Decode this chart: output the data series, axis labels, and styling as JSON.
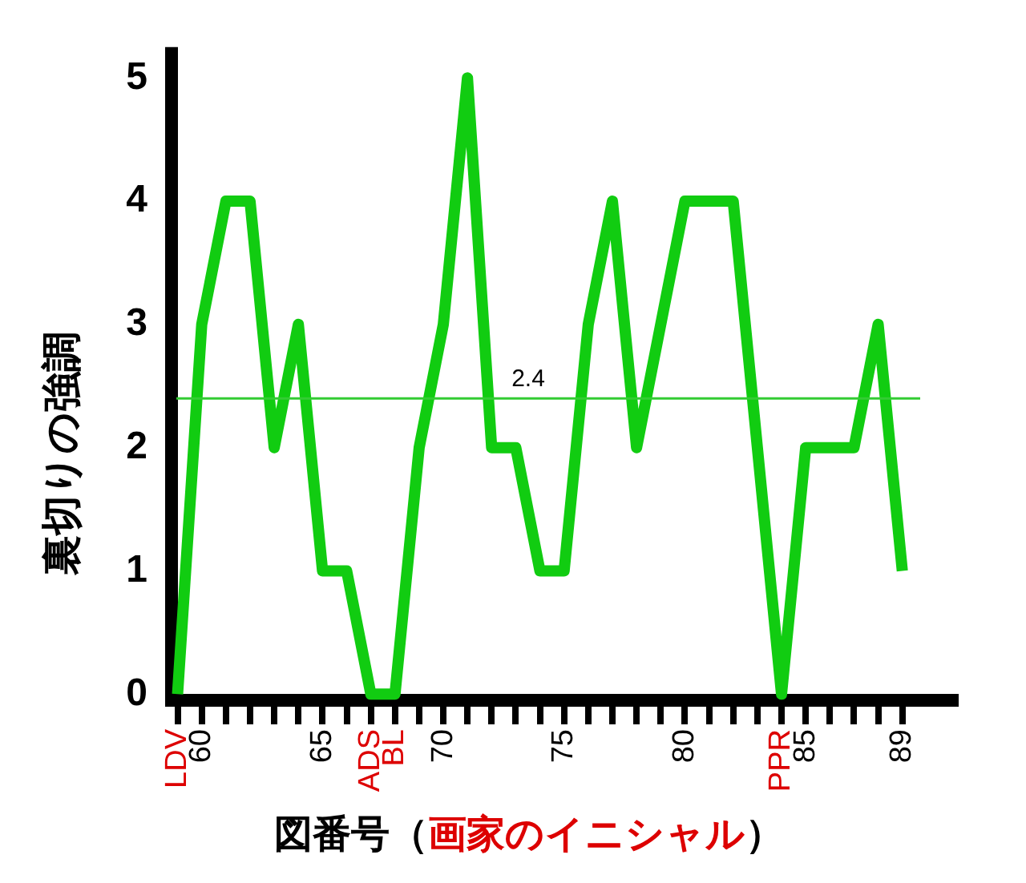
{
  "chart_data": {
    "type": "line",
    "xlabel": "図番号（画家のイニシャル）",
    "ylabel": "裏切りの強調",
    "x": [
      59,
      60,
      61,
      62,
      63,
      64,
      65,
      66,
      67,
      68,
      69,
      70,
      71,
      72,
      73,
      74,
      75,
      76,
      77,
      78,
      79,
      80,
      81,
      82,
      83,
      84,
      85,
      86,
      87,
      88,
      89
    ],
    "values": [
      0,
      3,
      4,
      4,
      2,
      3,
      1,
      1,
      0,
      0,
      2,
      3,
      5,
      2,
      2,
      1,
      1,
      3,
      4,
      2,
      3,
      4,
      4,
      4,
      2,
      0,
      2,
      2,
      2,
      3,
      1
    ],
    "color": "#11cc11",
    "xlim": [
      58.75,
      91.2
    ],
    "ylim": [
      -0.05,
      5.25
    ],
    "xticks": [
      {
        "value": 59,
        "label": "LDV"
      },
      60,
      {
        "value": 61,
        "label": null
      },
      {
        "value": 62,
        "label": null
      },
      {
        "value": 63,
        "label": null
      },
      {
        "value": 64,
        "label": null
      },
      65,
      {
        "value": 66,
        "label": null
      },
      {
        "value": 67,
        "label": "ADS"
      },
      {
        "value": 68,
        "label": "BL"
      },
      {
        "value": 69,
        "label": null
      },
      70,
      {
        "value": 71,
        "label": null
      },
      {
        "value": 72,
        "label": null
      },
      {
        "value": 73,
        "label": null
      },
      {
        "value": 74,
        "label": null
      },
      75,
      {
        "value": 76,
        "label": null
      },
      {
        "value": 77,
        "label": null
      },
      {
        "value": 78,
        "label": null
      },
      {
        "value": 79,
        "label": null
      },
      80,
      {
        "value": 81,
        "label": null
      },
      {
        "value": 82,
        "label": null
      },
      {
        "value": 83,
        "label": null
      },
      {
        "value": 84,
        "label": "PPR"
      },
      85,
      {
        "value": 86,
        "label": null
      },
      {
        "value": 87,
        "label": null
      },
      {
        "value": 88,
        "label": null
      },
      89
    ],
    "yticks": [
      0,
      1,
      2,
      3,
      4,
      5
    ],
    "grid": false,
    "legend": false,
    "marker": "none",
    "line_style": "solid",
    "ref_lines": [
      {
        "axis": "y",
        "value": 2.4,
        "label": "2.4",
        "color": "#33cc33"
      }
    ]
  }
}
